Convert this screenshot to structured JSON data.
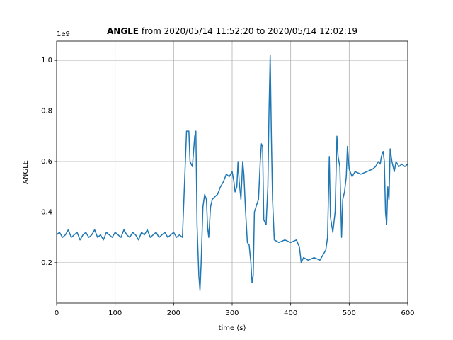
{
  "chart_data": {
    "type": "line",
    "title": {
      "bold": "ANGLE",
      "rest": "from 2020/05/14 11:52:20 to 2020/05/14 12:02:19"
    },
    "y_offset_label": "1e9",
    "x_label": "time (s)",
    "y_label": "ANGLE",
    "color": "#1f77b4",
    "grid": true,
    "xlim": [
      0,
      600
    ],
    "ylim": [
      0.04,
      1.076
    ],
    "xticks": [
      0,
      100,
      200,
      300,
      400,
      500,
      600
    ],
    "yticks": [
      0.2,
      0.4,
      0.6,
      0.8,
      1.0
    ],
    "x": [
      0,
      5,
      10,
      15,
      20,
      25,
      30,
      35,
      40,
      45,
      50,
      55,
      60,
      65,
      70,
      75,
      80,
      85,
      90,
      95,
      100,
      105,
      110,
      115,
      120,
      125,
      130,
      135,
      140,
      145,
      150,
      155,
      160,
      165,
      170,
      175,
      180,
      185,
      190,
      195,
      200,
      205,
      210,
      215,
      220,
      222,
      226,
      228,
      232,
      236,
      238,
      240,
      243,
      245,
      247,
      250,
      253,
      256,
      258,
      260,
      263,
      266,
      270,
      275,
      280,
      285,
      290,
      295,
      300,
      303,
      305,
      308,
      310,
      312,
      315,
      318,
      320,
      323,
      326,
      329,
      332,
      334,
      336,
      338,
      342,
      345,
      348,
      350,
      352,
      354,
      358,
      361,
      363,
      365,
      367,
      369,
      372,
      380,
      390,
      400,
      410,
      415,
      418,
      422,
      430,
      440,
      450,
      460,
      463,
      466,
      468,
      472,
      476,
      479,
      481,
      484,
      487,
      489,
      492,
      495,
      497,
      500,
      505,
      510,
      520,
      530,
      540,
      545,
      550,
      553,
      555,
      558,
      560,
      562,
      564,
      566,
      568,
      570,
      573,
      577,
      580,
      585,
      590,
      595,
      600
    ],
    "values": [
      0.31,
      0.32,
      0.3,
      0.31,
      0.33,
      0.3,
      0.31,
      0.32,
      0.29,
      0.31,
      0.32,
      0.3,
      0.31,
      0.33,
      0.3,
      0.31,
      0.29,
      0.32,
      0.31,
      0.3,
      0.32,
      0.31,
      0.3,
      0.33,
      0.31,
      0.3,
      0.32,
      0.31,
      0.29,
      0.32,
      0.31,
      0.33,
      0.3,
      0.31,
      0.32,
      0.3,
      0.31,
      0.32,
      0.3,
      0.31,
      0.32,
      0.3,
      0.31,
      0.3,
      0.6,
      0.72,
      0.72,
      0.6,
      0.58,
      0.7,
      0.72,
      0.35,
      0.15,
      0.09,
      0.2,
      0.42,
      0.47,
      0.45,
      0.34,
      0.3,
      0.42,
      0.45,
      0.46,
      0.47,
      0.5,
      0.52,
      0.55,
      0.54,
      0.56,
      0.52,
      0.48,
      0.5,
      0.6,
      0.52,
      0.45,
      0.6,
      0.55,
      0.4,
      0.28,
      0.27,
      0.2,
      0.12,
      0.15,
      0.4,
      0.43,
      0.45,
      0.6,
      0.67,
      0.66,
      0.37,
      0.35,
      0.5,
      0.8,
      1.02,
      0.7,
      0.45,
      0.29,
      0.28,
      0.29,
      0.28,
      0.29,
      0.26,
      0.2,
      0.22,
      0.21,
      0.22,
      0.21,
      0.25,
      0.3,
      0.62,
      0.38,
      0.32,
      0.4,
      0.7,
      0.62,
      0.58,
      0.3,
      0.45,
      0.48,
      0.54,
      0.66,
      0.57,
      0.54,
      0.56,
      0.55,
      0.56,
      0.57,
      0.58,
      0.6,
      0.59,
      0.62,
      0.64,
      0.6,
      0.4,
      0.35,
      0.5,
      0.45,
      0.65,
      0.6,
      0.56,
      0.6,
      0.58,
      0.59,
      0.58,
      0.59
    ]
  }
}
